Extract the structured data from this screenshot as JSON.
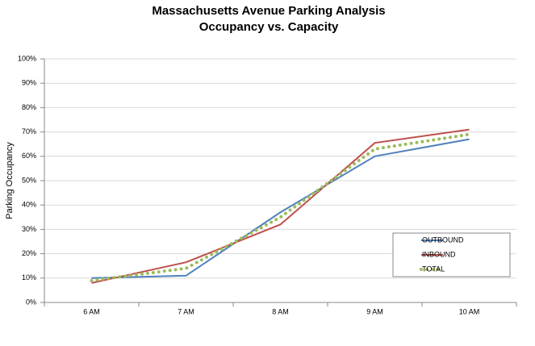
{
  "chart_data": {
    "type": "line",
    "title": "Massachusetts Avenue Parking Analysis",
    "subtitle": "Occupancy vs. Capacity",
    "y_label": "Parking Occupancy",
    "categories": [
      "6 AM",
      "7 AM",
      "8 AM",
      "9 AM",
      "10 AM"
    ],
    "series": [
      {
        "name": "OUTBOUND",
        "color": "#4f81bd",
        "style": "solid",
        "values": [
          10,
          11,
          37,
          60,
          67
        ]
      },
      {
        "name": "INBOUND",
        "color": "#c0504d",
        "style": "solid",
        "values": [
          8,
          16.5,
          32,
          65.5,
          71
        ]
      },
      {
        "name": "TOTAL",
        "color": "#9bbb59",
        "style": "dotted",
        "values": [
          9,
          14,
          35,
          63,
          69
        ]
      }
    ],
    "ylim": [
      0,
      100
    ],
    "yticks": [
      {
        "value": 0,
        "label": "0%"
      },
      {
        "value": 10,
        "label": "10%"
      },
      {
        "value": 20,
        "label": "20%"
      },
      {
        "value": 30,
        "label": "30%"
      },
      {
        "value": 40,
        "label": "40%"
      },
      {
        "value": 50,
        "label": "50%"
      },
      {
        "value": 60,
        "label": "60%"
      },
      {
        "value": 70,
        "label": "70%"
      },
      {
        "value": 80,
        "label": "80%"
      },
      {
        "value": 90,
        "label": "90%"
      },
      {
        "value": 100,
        "label": "100%"
      }
    ],
    "grid": true,
    "legend": "lower-right"
  }
}
